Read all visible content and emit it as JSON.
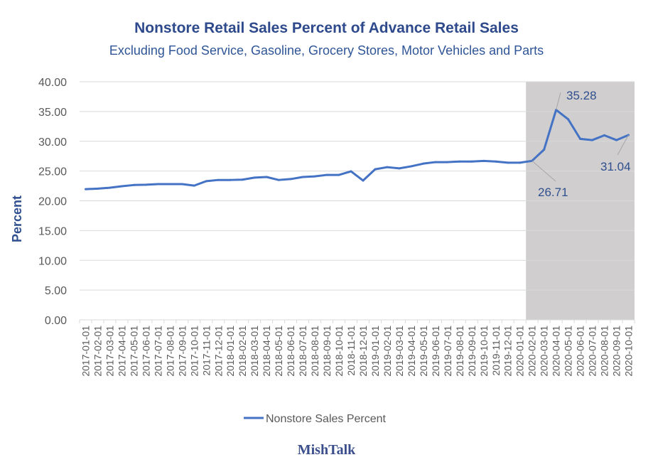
{
  "chart_data": {
    "type": "line",
    "title": "Nonstore Retail Sales Percent of Advance Retail Sales",
    "subtitle": "Excluding Food Service, Gasoline, Grocery Stores, Motor Vehicles and Parts",
    "xlabel": "",
    "ylabel": "Percent",
    "ylim": [
      0,
      40
    ],
    "yticks": [
      "0.00",
      "5.00",
      "10.00",
      "15.00",
      "20.00",
      "25.00",
      "30.00",
      "35.00",
      "40.00"
    ],
    "grid": true,
    "legend": "bottom",
    "x": [
      "2017-01-01",
      "2017-02-01",
      "2017-03-01",
      "2017-04-01",
      "2017-05-01",
      "2017-06-01",
      "2017-07-01",
      "2017-08-01",
      "2017-09-01",
      "2017-10-01",
      "2017-11-01",
      "2017-12-01",
      "2018-01-01",
      "2018-02-01",
      "2018-03-01",
      "2018-04-01",
      "2018-05-01",
      "2018-06-01",
      "2018-07-01",
      "2018-08-01",
      "2018-09-01",
      "2018-10-01",
      "2018-11-01",
      "2018-12-01",
      "2019-01-01",
      "2019-02-01",
      "2019-03-01",
      "2019-04-01",
      "2019-05-01",
      "2019-06-01",
      "2019-07-01",
      "2019-08-01",
      "2019-09-01",
      "2019-10-01",
      "2019-11-01",
      "2019-12-01",
      "2020-01-01",
      "2020-02-01",
      "2020-03-01",
      "2020-04-01",
      "2020-05-01",
      "2020-06-01",
      "2020-07-01",
      "2020-08-01",
      "2020-09-01",
      "2020-10-01"
    ],
    "series": [
      {
        "name": "Nonstore Sales Percent",
        "color": "#4472C4",
        "values": [
          21.95,
          22.05,
          22.2,
          22.45,
          22.65,
          22.7,
          22.8,
          22.8,
          22.8,
          22.55,
          23.3,
          23.5,
          23.5,
          23.55,
          23.9,
          24.0,
          23.5,
          23.65,
          24.0,
          24.1,
          24.35,
          24.35,
          24.95,
          23.4,
          25.3,
          25.65,
          25.45,
          25.8,
          26.25,
          26.5,
          26.5,
          26.6,
          26.6,
          26.7,
          26.6,
          26.4,
          26.4,
          26.71,
          28.6,
          35.28,
          33.7,
          30.4,
          30.2,
          31.0,
          30.2,
          31.04
        ]
      }
    ],
    "annotations": [
      {
        "label": "26.71",
        "x": "2020-02-01"
      },
      {
        "label": "35.28",
        "x": "2020-04-01"
      },
      {
        "label": "31.04",
        "x": "2020-10-01"
      }
    ],
    "shaded_region": {
      "from": "2020-02-01",
      "to": "2020-10-01",
      "color": "#D0CECE"
    }
  },
  "footer": {
    "logo_text": "MishTalk"
  }
}
